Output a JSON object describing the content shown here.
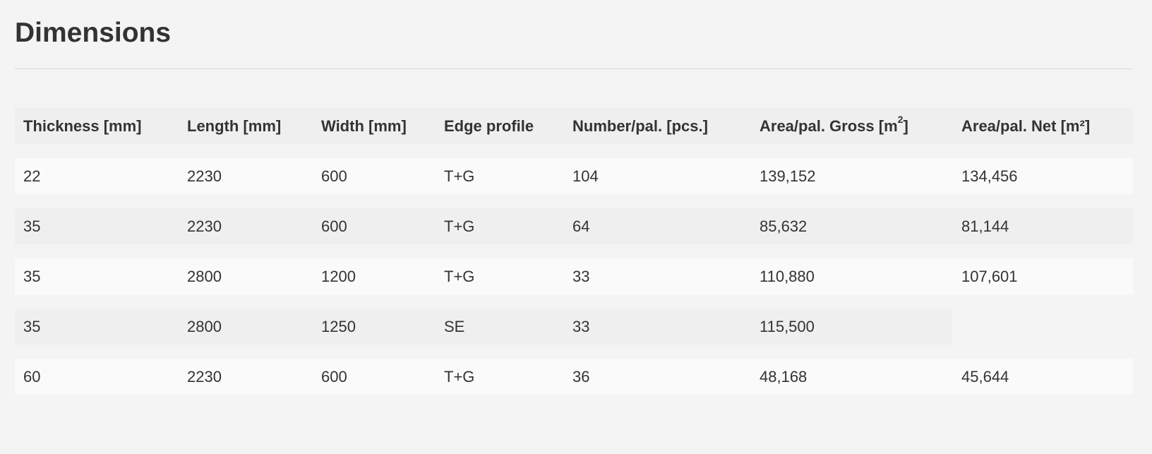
{
  "section": {
    "title": "Dimensions"
  },
  "table": {
    "headers": [
      "Thickness [mm]",
      "Length [mm]",
      "Width [mm]",
      "Edge profile",
      "Number/pal. [pcs.]",
      "Area/pal. Gross [m",
      "Area/pal. Net [m²]"
    ],
    "header_sup": "2",
    "header_close": "]",
    "rows": [
      [
        "22",
        "2230",
        "600",
        "T+G",
        "104",
        "139,152",
        "134,456"
      ],
      [
        "35",
        "2230",
        "600",
        "T+G",
        "64",
        "85,632",
        "81,144"
      ],
      [
        "35",
        "2800",
        "1200",
        "T+G",
        "33",
        "110,880",
        "107,601"
      ],
      [
        "35",
        "2800",
        "1250",
        "SE",
        "33",
        "115,500",
        ""
      ],
      [
        "60",
        "2230",
        "600",
        "T+G",
        "36",
        "48,168",
        "45,644"
      ]
    ]
  }
}
